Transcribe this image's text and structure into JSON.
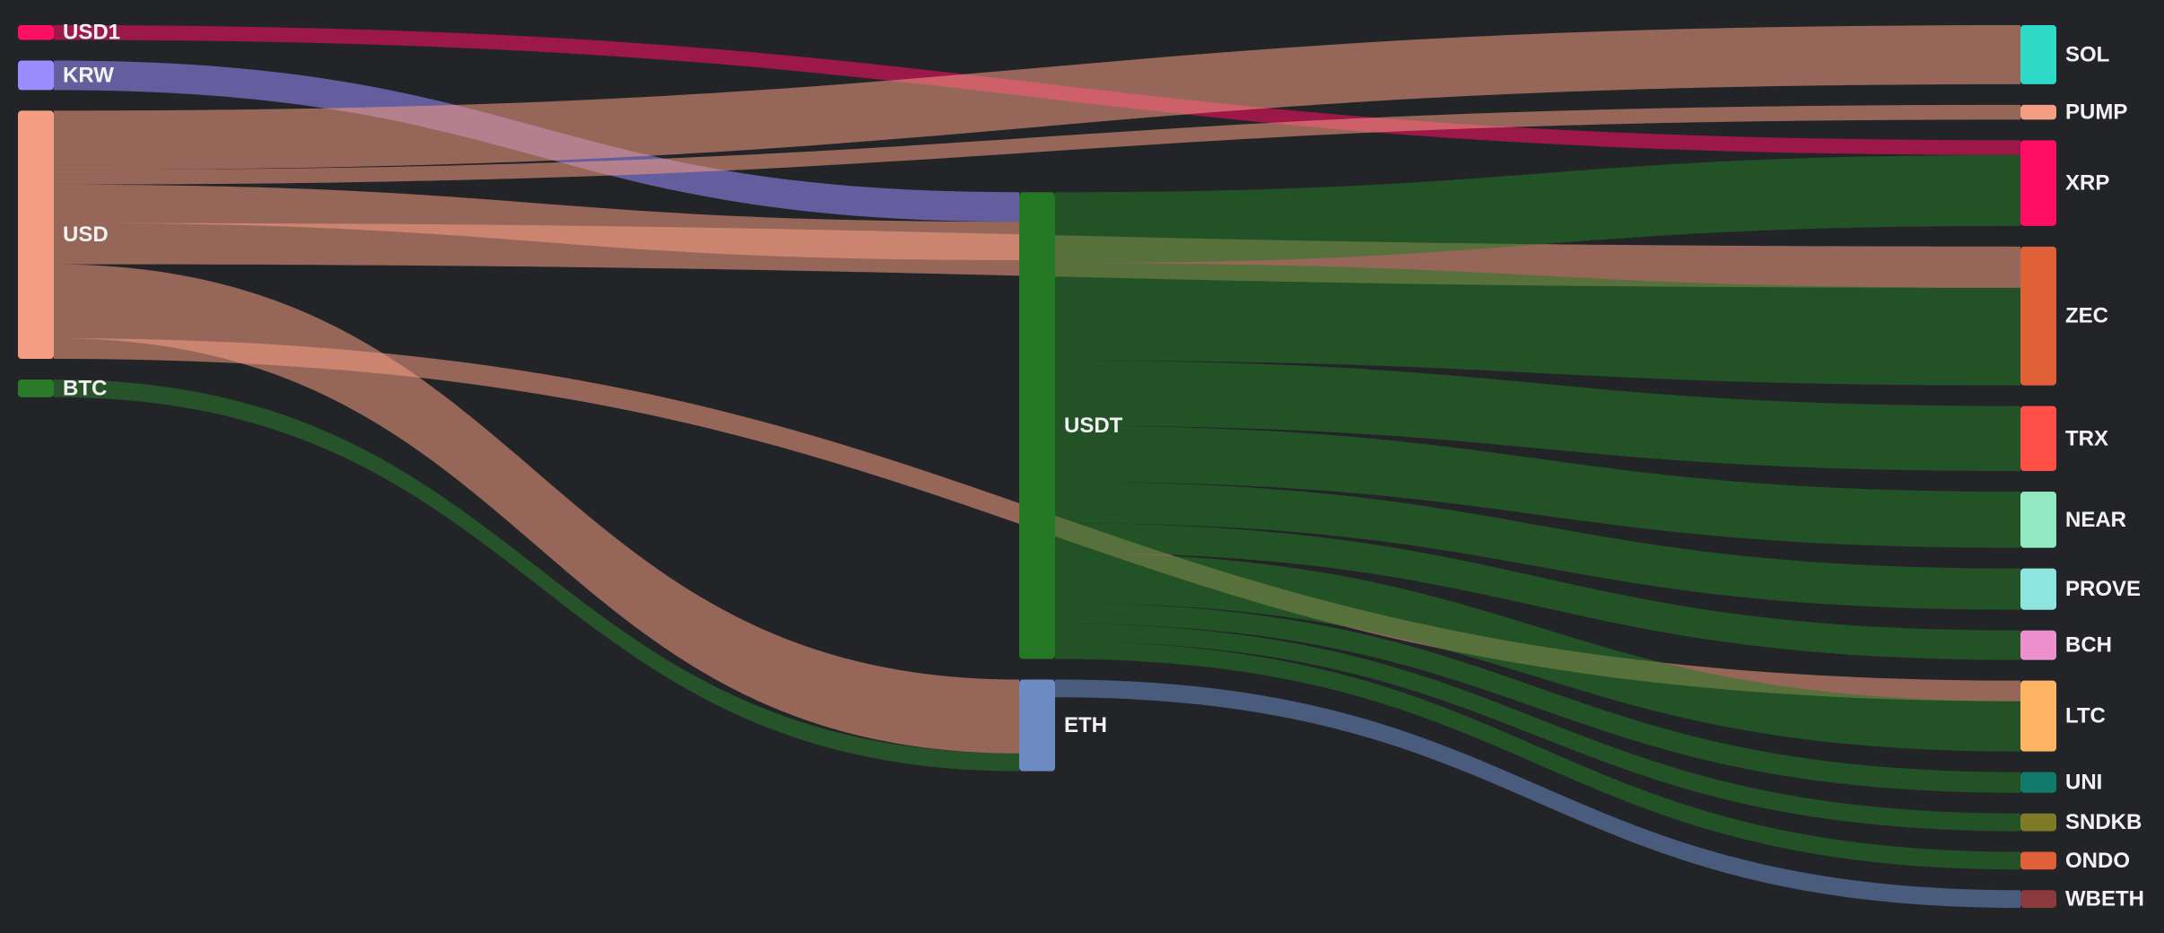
{
  "chart_data": {
    "type": "sankey",
    "nodes": [
      {
        "id": "USD1",
        "label": "USD1",
        "color": "#ff0f64"
      },
      {
        "id": "KRW",
        "label": "KRW",
        "color": "#9b8cff"
      },
      {
        "id": "USD",
        "label": "USD",
        "color": "#f59d82"
      },
      {
        "id": "BTC",
        "label": "BTC",
        "color": "#2a7a2a"
      },
      {
        "id": "USDT",
        "label": "USDT",
        "color": "#247824"
      },
      {
        "id": "SOL",
        "label": "SOL",
        "color": "#2fd9c8"
      },
      {
        "id": "PUMP",
        "label": "PUMP",
        "color": "#f59d82"
      },
      {
        "id": "ETH",
        "label": "ETH",
        "color": "#6b8bc2"
      },
      {
        "id": "XRP",
        "label": "XRP",
        "color": "#ff0f64"
      },
      {
        "id": "ZEC",
        "label": "ZEC",
        "color": "#e06038"
      },
      {
        "id": "TRX",
        "label": "TRX",
        "color": "#ff4f46"
      },
      {
        "id": "NEAR",
        "label": "NEAR",
        "color": "#92e8c0"
      },
      {
        "id": "PROVE",
        "label": "PROVE",
        "color": "#8ee5e0"
      },
      {
        "id": "BCH",
        "label": "BCH",
        "color": "#ee8fce"
      },
      {
        "id": "LTC",
        "label": "LTC",
        "color": "#ffb463"
      },
      {
        "id": "UNI",
        "label": "UNI",
        "color": "#117a6a"
      },
      {
        "id": "SNDKB",
        "label": "SNDKB",
        "color": "#7f7a26"
      },
      {
        "id": "ONDO",
        "label": "ONDO",
        "color": "#e06038"
      },
      {
        "id": "WBETH",
        "label": "WBETH",
        "color": "#8a3a3a"
      }
    ],
    "links": [
      {
        "source": "USD1",
        "target": "XRP",
        "value": 2.5
      },
      {
        "source": "KRW",
        "target": "USDT",
        "value": 5
      },
      {
        "source": "USD",
        "target": "USDT",
        "value": 6.5
      },
      {
        "source": "USD",
        "target": "ZEC",
        "value": 7
      },
      {
        "source": "USD",
        "target": "LTC",
        "value": 3.5
      },
      {
        "source": "USD",
        "target": "SOL",
        "value": 10
      },
      {
        "source": "USD",
        "target": "PUMP",
        "value": 2.5
      },
      {
        "source": "USD",
        "target": "ETH",
        "value": 12.5
      },
      {
        "source": "BTC",
        "target": "ETH",
        "value": 3
      },
      {
        "source": "USDT",
        "target": "XRP",
        "value": 12
      },
      {
        "source": "USDT",
        "target": "ZEC",
        "value": 16.5
      },
      {
        "source": "USDT",
        "target": "TRX",
        "value": 11
      },
      {
        "source": "USDT",
        "target": "NEAR",
        "value": 9.5
      },
      {
        "source": "USDT",
        "target": "PROVE",
        "value": 7
      },
      {
        "source": "USDT",
        "target": "BCH",
        "value": 5
      },
      {
        "source": "USDT",
        "target": "LTC",
        "value": 8.5
      },
      {
        "source": "USDT",
        "target": "UNI",
        "value": 3.5
      },
      {
        "source": "USDT",
        "target": "SNDKB",
        "value": 3
      },
      {
        "source": "USDT",
        "target": "ONDO",
        "value": 3
      },
      {
        "source": "ETH",
        "target": "WBETH",
        "value": 3
      }
    ]
  }
}
